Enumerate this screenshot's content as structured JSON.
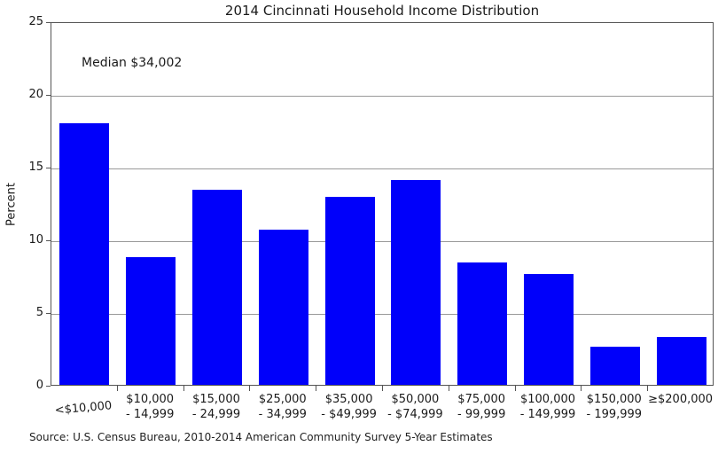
{
  "title": "2014 Cincinnati Household Income Distribution",
  "annotation": "Median $34,002",
  "ylabel": "Percent",
  "source": "Source: U.S. Census Bureau, 2010-2014 American Community Survey 5-Year Estimates",
  "colors": {
    "bar": "#0000fa",
    "grid": "#999999",
    "frame": "#555555",
    "text": "#1a1a1a"
  },
  "chart_data": {
    "type": "bar",
    "title": "2014 Cincinnati Household Income Distribution",
    "xlabel": "",
    "ylabel": "Percent",
    "ylim": [
      0,
      25
    ],
    "yticks": [
      0,
      5,
      10,
      15,
      20,
      25
    ],
    "grid": true,
    "legend": false,
    "categories": [
      "<$10,000",
      "$10,000 - 14,999",
      "$15,000 - 24,999",
      "$25,000 - 34,999",
      "$35,000 - $49,999",
      "$50,000 - $74,999",
      "$75,000 - 99,999",
      "$100,000 - 149,999",
      "$150,000 - 199,999",
      "≥$200,000"
    ],
    "category_label_lines": [
      [
        "<$10,000"
      ],
      [
        "$10,000",
        "- 14,999"
      ],
      [
        "$15,000",
        "- 24,999"
      ],
      [
        "$25,000",
        "- 34,999"
      ],
      [
        "$35,000",
        "- $49,999"
      ],
      [
        "$50,000",
        "- $74,999"
      ],
      [
        "$75,000",
        "- 99,999"
      ],
      [
        "$100,000",
        "- 149,999"
      ],
      [
        "$150,000",
        "- 199,999"
      ],
      [
        "≥$200,000"
      ]
    ],
    "values": [
      18.0,
      8.8,
      13.4,
      10.7,
      12.9,
      14.1,
      8.4,
      7.6,
      2.6,
      3.3
    ],
    "annotation": "Median $34,002",
    "source": "Source: U.S. Census Bureau, 2010-2014 American Community Survey 5-Year Estimates"
  }
}
